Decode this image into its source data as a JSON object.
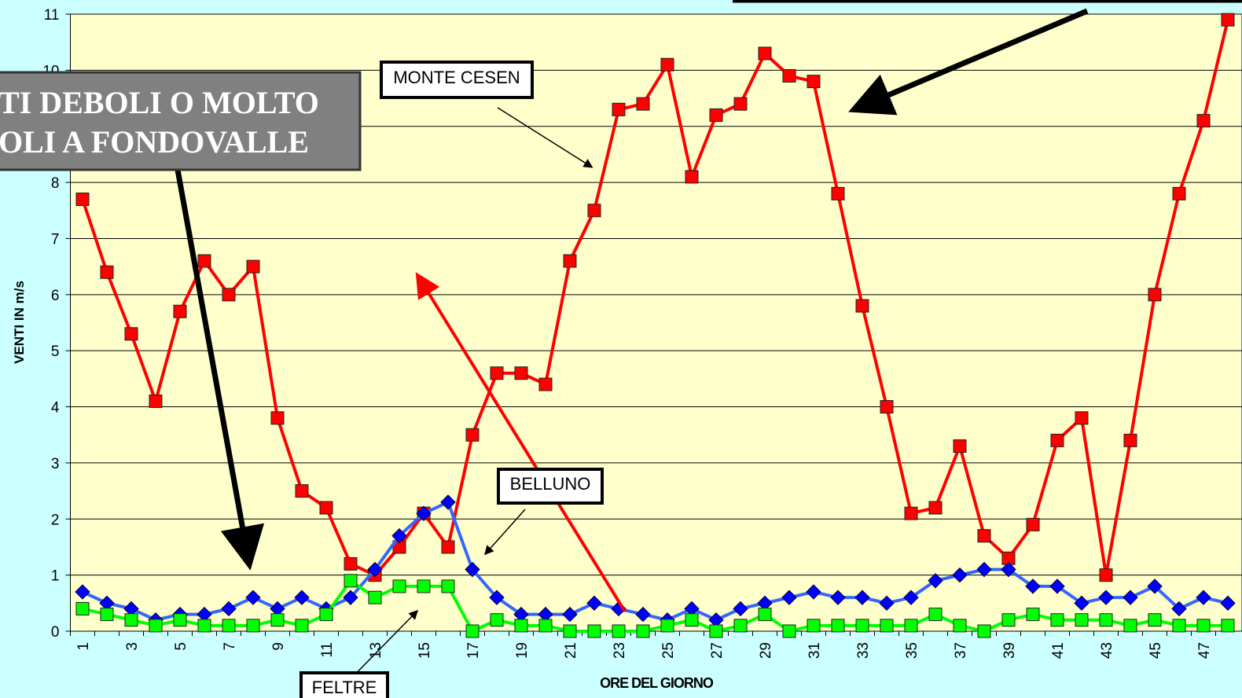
{
  "chart_data": {
    "type": "line",
    "xlabel": "ORE DEL GIORNO",
    "ylabel": "VENTI IN m/s",
    "categories": [
      1,
      null,
      3,
      null,
      5,
      null,
      7,
      null,
      9,
      null,
      11,
      null,
      13,
      null,
      15,
      null,
      17,
      null,
      19,
      null,
      21,
      null,
      23,
      null,
      25,
      null,
      27,
      null,
      29,
      null,
      31,
      null,
      33,
      null,
      35,
      null,
      37,
      null,
      39,
      null,
      41,
      null,
      43,
      null,
      45,
      null,
      47,
      null
    ],
    "series": [
      {
        "name": "MONTE CESEN",
        "color": "#ff0000",
        "marker": "square",
        "values": [
          7.7,
          6.4,
          5.3,
          4.1,
          5.7,
          6.6,
          6.0,
          6.5,
          3.8,
          2.5,
          2.2,
          1.2,
          1.0,
          1.5,
          2.1,
          1.5,
          3.5,
          4.6,
          4.6,
          4.4,
          6.6,
          7.5,
          9.3,
          9.4,
          10.1,
          8.1,
          9.2,
          9.4,
          10.3,
          9.9,
          9.8,
          7.8,
          5.8,
          4.0,
          2.1,
          2.2,
          3.3,
          1.7,
          1.3,
          1.9,
          3.4,
          3.8,
          1.0,
          3.4,
          6.0,
          7.8,
          9.1,
          10.9
        ]
      },
      {
        "name": "BELLUNO",
        "color": "#0000ff",
        "line_color": "#3366ff",
        "marker": "diamond",
        "values": [
          0.7,
          0.5,
          0.4,
          0.2,
          0.3,
          0.3,
          0.4,
          0.6,
          0.4,
          0.6,
          0.4,
          0.6,
          1.1,
          1.7,
          2.1,
          2.3,
          1.1,
          0.6,
          0.3,
          0.3,
          0.3,
          0.5,
          0.4,
          0.3,
          0.2,
          0.4,
          0.2,
          0.4,
          0.5,
          0.6,
          0.7,
          0.6,
          0.6,
          0.5,
          0.6,
          0.9,
          1.0,
          1.1,
          1.1,
          0.8,
          0.8,
          0.5,
          0.6,
          0.6,
          0.8,
          0.4,
          0.6,
          0.5
        ]
      },
      {
        "name": "FELTRE",
        "color": "#00ff00",
        "marker": "square",
        "values": [
          0.4,
          0.3,
          0.2,
          0.1,
          0.2,
          0.1,
          0.1,
          0.1,
          0.2,
          0.1,
          0.3,
          0.9,
          0.6,
          0.8,
          0.8,
          0.8,
          0.0,
          0.2,
          0.1,
          0.1,
          0.0,
          0.0,
          0.0,
          0.0,
          0.1,
          0.2,
          0.0,
          0.1,
          0.3,
          0.0,
          0.1,
          0.1,
          0.1,
          0.1,
          0.1,
          0.3,
          0.1,
          0.0,
          0.2,
          0.3,
          0.2,
          0.2,
          0.2,
          0.1,
          0.2,
          0.1,
          0.1,
          0.1
        ]
      }
    ],
    "ylim": [
      0,
      11
    ],
    "yticks": [
      0,
      1,
      2,
      3,
      4,
      5,
      6,
      7,
      8,
      9,
      10,
      11
    ],
    "grid": true,
    "annotations": [
      "TI DEBOLI O MOLTO",
      "OLI A FONDOVALLE"
    ]
  }
}
